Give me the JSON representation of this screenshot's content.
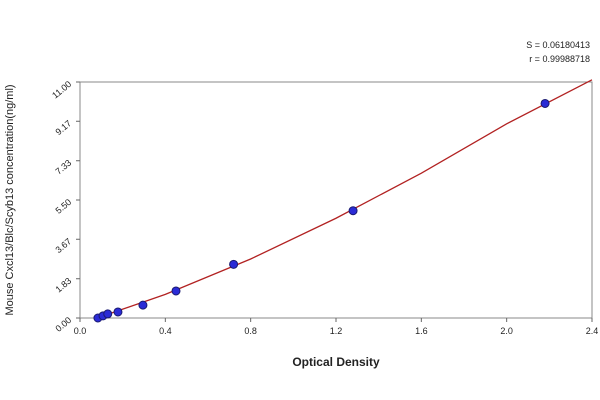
{
  "chart_data": {
    "type": "scatter",
    "x_label": "Optical Density",
    "y_label": "Mouse Cxcl13/Blc/Scyb13 concentration(ng/ml)",
    "stats": [
      "S = 0.06180413",
      "r = 0.99988718"
    ],
    "x": [
      0.084,
      0.108,
      0.13,
      0.178,
      0.295,
      0.45,
      0.72,
      1.28,
      2.18
    ],
    "values": [
      0,
      0.1,
      0.19,
      0.28,
      0.6,
      1.26,
      2.5,
      5.0,
      10.0
    ],
    "color": "#2b2bd6",
    "fit": {
      "color": "#b22222",
      "x": [
        0.08,
        0.4,
        0.8,
        1.2,
        1.6,
        2.0,
        2.4
      ],
      "y": [
        0,
        1.1,
        2.75,
        4.65,
        6.75,
        9.05,
        11.1
      ]
    },
    "xlim": [
      0,
      2.4
    ],
    "xticks": [
      {
        "value": 0,
        "label": "0.0"
      },
      0.4,
      0.8,
      1.2,
      1.6,
      {
        "value": 2,
        "label": "2.0"
      },
      2.4
    ],
    "ylim": [
      0,
      11
    ],
    "yticks": [
      {
        "value": 0,
        "label": "0.00"
      },
      1.83,
      3.67,
      {
        "value": 5.5,
        "label": "5.50"
      },
      7.33,
      9.17,
      {
        "value": 11,
        "label": "11.00"
      }
    ]
  }
}
